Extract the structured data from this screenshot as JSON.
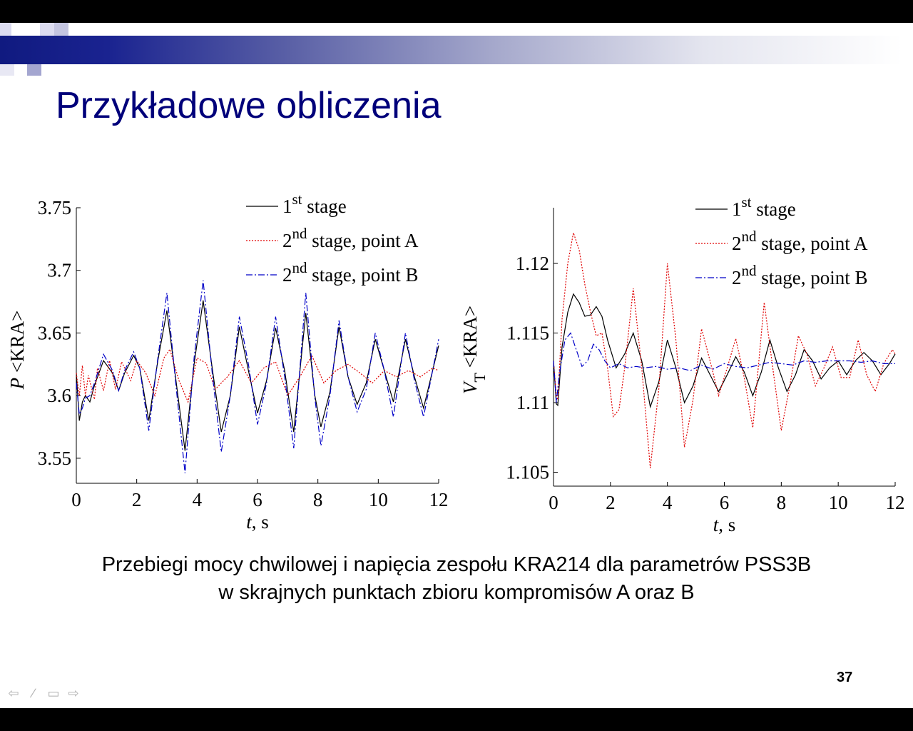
{
  "slide": {
    "title": "Przykładowe obliczenia",
    "caption_line1": "Przebiegi mocy chwilowej i napięcia zespołu KRA214 dla parametrów PSS3B",
    "caption_line2": "w skrajnych punktach zbioru kompromisów A oraz B",
    "page_number": "37",
    "colors": {
      "title": "#00007a",
      "banner_dark": "#101a80",
      "stage1": "#000000",
      "stageA": "#e00000",
      "stageB": "#0000c8"
    },
    "nav_icons": [
      "arrow-left-icon",
      "pen-icon",
      "screen-icon",
      "arrow-right-icon"
    ]
  },
  "chart_data": [
    {
      "type": "line",
      "ylabel": "P <KRA>",
      "xlabel": "t, s",
      "xlim": [
        0,
        12
      ],
      "ylim": [
        3.53,
        3.75
      ],
      "xticks": [
        0,
        2,
        4,
        6,
        8,
        10,
        12
      ],
      "yticks": [
        3.55,
        3.6,
        3.65,
        3.7,
        3.75
      ],
      "ytick_labels": [
        "3.55",
        "3.6",
        "3.65",
        "3.7",
        "3.75"
      ],
      "legend": [
        {
          "sup": "st",
          "prefix": "1",
          "text": " stage"
        },
        {
          "sup": "nd",
          "prefix": "2",
          "text": " stage, point A"
        },
        {
          "sup": "nd",
          "prefix": "2",
          "text": " stage, point B"
        }
      ],
      "series": [
        {
          "name": "1st stage",
          "color": "#000000",
          "dash": "solid",
          "x": [
            0,
            0.1,
            0.2,
            0.3,
            0.45,
            0.6,
            0.9,
            1.2,
            1.4,
            1.6,
            1.9,
            2.1,
            2.4,
            2.7,
            3.0,
            3.3,
            3.6,
            3.9,
            4.2,
            4.5,
            4.8,
            5.1,
            5.4,
            5.7,
            6.0,
            6.3,
            6.6,
            6.9,
            7.2,
            7.6,
            7.9,
            8.1,
            8.4,
            8.7,
            9.0,
            9.3,
            9.6,
            9.9,
            10.2,
            10.5,
            10.9,
            11.2,
            11.5,
            11.8,
            12.0
          ],
          "y": [
            3.618,
            3.58,
            3.595,
            3.6,
            3.595,
            3.608,
            3.628,
            3.618,
            3.604,
            3.618,
            3.632,
            3.622,
            3.58,
            3.628,
            3.668,
            3.612,
            3.556,
            3.625,
            3.676,
            3.622,
            3.571,
            3.6,
            3.655,
            3.62,
            3.586,
            3.612,
            3.654,
            3.62,
            3.571,
            3.666,
            3.6,
            3.575,
            3.603,
            3.655,
            3.615,
            3.593,
            3.61,
            3.645,
            3.62,
            3.595,
            3.645,
            3.615,
            3.59,
            3.62,
            3.64
          ]
        },
        {
          "name": "2nd stage, point A",
          "color": "#e00000",
          "dash": "dotted",
          "x": [
            0,
            0.1,
            0.2,
            0.3,
            0.4,
            0.6,
            0.7,
            0.9,
            1.1,
            1.3,
            1.5,
            1.8,
            2.0,
            2.3,
            2.6,
            2.9,
            3.1,
            3.4,
            3.7,
            4.0,
            4.3,
            4.6,
            5.0,
            5.4,
            5.8,
            6.2,
            6.6,
            7.0,
            7.4,
            7.8,
            8.2,
            8.6,
            9.0,
            9.4,
            9.8,
            10.2,
            10.6,
            11.0,
            11.4,
            11.8,
            12.0
          ],
          "y": [
            3.618,
            3.6,
            3.624,
            3.6,
            3.616,
            3.597,
            3.622,
            3.604,
            3.628,
            3.605,
            3.627,
            3.612,
            3.628,
            3.618,
            3.6,
            3.63,
            3.637,
            3.612,
            3.595,
            3.63,
            3.626,
            3.605,
            3.615,
            3.628,
            3.61,
            3.622,
            3.627,
            3.6,
            3.615,
            3.632,
            3.61,
            3.62,
            3.625,
            3.618,
            3.61,
            3.62,
            3.615,
            3.62,
            3.615,
            3.622,
            3.62
          ]
        },
        {
          "name": "2nd stage, point B",
          "color": "#0000c8",
          "dash": "dashdot",
          "x": [
            0,
            0.1,
            0.2,
            0.3,
            0.45,
            0.6,
            0.9,
            1.2,
            1.4,
            1.6,
            1.9,
            2.1,
            2.4,
            2.7,
            3.0,
            3.3,
            3.6,
            3.9,
            4.2,
            4.5,
            4.8,
            5.1,
            5.4,
            5.7,
            6.0,
            6.3,
            6.6,
            6.9,
            7.2,
            7.6,
            7.9,
            8.1,
            8.4,
            8.7,
            9.0,
            9.3,
            9.6,
            9.9,
            10.2,
            10.5,
            10.9,
            11.2,
            11.5,
            11.8,
            12.0
          ],
          "y": [
            3.61,
            3.585,
            3.59,
            3.598,
            3.6,
            3.61,
            3.633,
            3.62,
            3.604,
            3.62,
            3.635,
            3.622,
            3.572,
            3.63,
            3.682,
            3.608,
            3.538,
            3.63,
            3.692,
            3.618,
            3.555,
            3.6,
            3.663,
            3.625,
            3.577,
            3.61,
            3.663,
            3.615,
            3.558,
            3.682,
            3.598,
            3.56,
            3.6,
            3.66,
            3.615,
            3.587,
            3.605,
            3.65,
            3.62,
            3.583,
            3.65,
            3.612,
            3.583,
            3.62,
            3.645
          ]
        }
      ]
    },
    {
      "type": "line",
      "ylabel": "V",
      "ylabel_sub": "T",
      "ylabel_rest": " <KRA>",
      "xlabel": "t, s",
      "xlim": [
        0,
        12
      ],
      "ylim": [
        1.104,
        1.124
      ],
      "xticks": [
        0,
        2,
        4,
        6,
        8,
        10,
        12
      ],
      "yticks": [
        1.105,
        1.11,
        1.115,
        1.12
      ],
      "ytick_labels": [
        "1.105",
        "1.11",
        "1.115",
        "1.12"
      ],
      "legend": [
        {
          "sup": "st",
          "prefix": "1",
          "text": " stage"
        },
        {
          "sup": "nd",
          "prefix": "2",
          "text": " stage, point A"
        },
        {
          "sup": "nd",
          "prefix": "2",
          "text": " stage, point B"
        }
      ],
      "series": [
        {
          "name": "1st stage",
          "color": "#000000",
          "dash": "solid",
          "x": [
            0,
            0.1,
            0.15,
            0.3,
            0.5,
            0.7,
            0.9,
            1.1,
            1.3,
            1.5,
            1.7,
            1.9,
            2.2,
            2.5,
            2.8,
            3.1,
            3.4,
            3.7,
            4.0,
            4.3,
            4.6,
            4.9,
            5.2,
            5.5,
            5.8,
            6.1,
            6.4,
            6.7,
            7.0,
            7.3,
            7.6,
            7.9,
            8.2,
            8.5,
            8.8,
            9.1,
            9.4,
            9.7,
            10.0,
            10.3,
            10.6,
            10.9,
            11.2,
            11.5,
            11.8,
            12.0
          ],
          "y": [
            1.113,
            1.1099,
            1.1098,
            1.114,
            1.1165,
            1.1178,
            1.1172,
            1.1162,
            1.1163,
            1.1169,
            1.1162,
            1.1145,
            1.1125,
            1.1135,
            1.115,
            1.113,
            1.1097,
            1.1115,
            1.1145,
            1.1125,
            1.11,
            1.1112,
            1.1132,
            1.112,
            1.1108,
            1.112,
            1.1133,
            1.1122,
            1.1105,
            1.1122,
            1.1145,
            1.1125,
            1.1108,
            1.112,
            1.1138,
            1.113,
            1.1117,
            1.1125,
            1.113,
            1.112,
            1.113,
            1.1136,
            1.113,
            1.112,
            1.1128,
            1.1135
          ]
        },
        {
          "name": "2nd stage, point A",
          "color": "#e00000",
          "dash": "dotted",
          "x": [
            0,
            0.1,
            0.15,
            0.3,
            0.5,
            0.7,
            0.9,
            1.1,
            1.3,
            1.5,
            1.7,
            1.9,
            2.1,
            2.3,
            2.5,
            2.8,
            3.1,
            3.4,
            3.7,
            4.0,
            4.3,
            4.6,
            4.9,
            5.2,
            5.5,
            5.8,
            6.1,
            6.4,
            6.7,
            7.0,
            7.4,
            7.7,
            8.0,
            8.3,
            8.6,
            8.9,
            9.2,
            9.5,
            9.8,
            10.1,
            10.4,
            10.7,
            11.0,
            11.3,
            11.6,
            11.9,
            12.0
          ],
          "y": [
            1.113,
            1.1105,
            1.1102,
            1.116,
            1.12,
            1.1222,
            1.121,
            1.1185,
            1.1165,
            1.1148,
            1.115,
            1.1125,
            1.109,
            1.1095,
            1.1125,
            1.1182,
            1.1125,
            1.1053,
            1.111,
            1.12,
            1.1145,
            1.1068,
            1.1102,
            1.1153,
            1.113,
            1.1105,
            1.1125,
            1.1146,
            1.1118,
            1.1082,
            1.1172,
            1.1125,
            1.108,
            1.1112,
            1.1148,
            1.1135,
            1.1112,
            1.1125,
            1.114,
            1.1118,
            1.1118,
            1.1145,
            1.112,
            1.1108,
            1.1128,
            1.1138,
            1.1135
          ]
        },
        {
          "name": "2nd stage, point B",
          "color": "#0000c8",
          "dash": "dashdot",
          "x": [
            0,
            0.1,
            0.2,
            0.4,
            0.6,
            0.8,
            1.0,
            1.2,
            1.4,
            1.6,
            1.8,
            2.0,
            2.3,
            2.6,
            2.9,
            3.2,
            3.6,
            4.0,
            4.4,
            4.8,
            5.2,
            5.6,
            6.0,
            6.4,
            6.8,
            7.2,
            7.6,
            8.0,
            8.4,
            8.8,
            9.2,
            9.6,
            10.0,
            10.4,
            10.8,
            11.2,
            11.6,
            12.0
          ],
          "y": [
            1.113,
            1.11,
            1.112,
            1.1145,
            1.115,
            1.1138,
            1.1126,
            1.113,
            1.1142,
            1.1138,
            1.113,
            1.1125,
            1.1128,
            1.1125,
            1.1126,
            1.1125,
            1.1126,
            1.1124,
            1.1125,
            1.1123,
            1.1127,
            1.1124,
            1.1128,
            1.1126,
            1.1125,
            1.1127,
            1.1129,
            1.1128,
            1.1127,
            1.113,
            1.1129,
            1.113,
            1.113,
            1.113,
            1.1129,
            1.113,
            1.1128,
            1.1128
          ]
        }
      ]
    }
  ]
}
